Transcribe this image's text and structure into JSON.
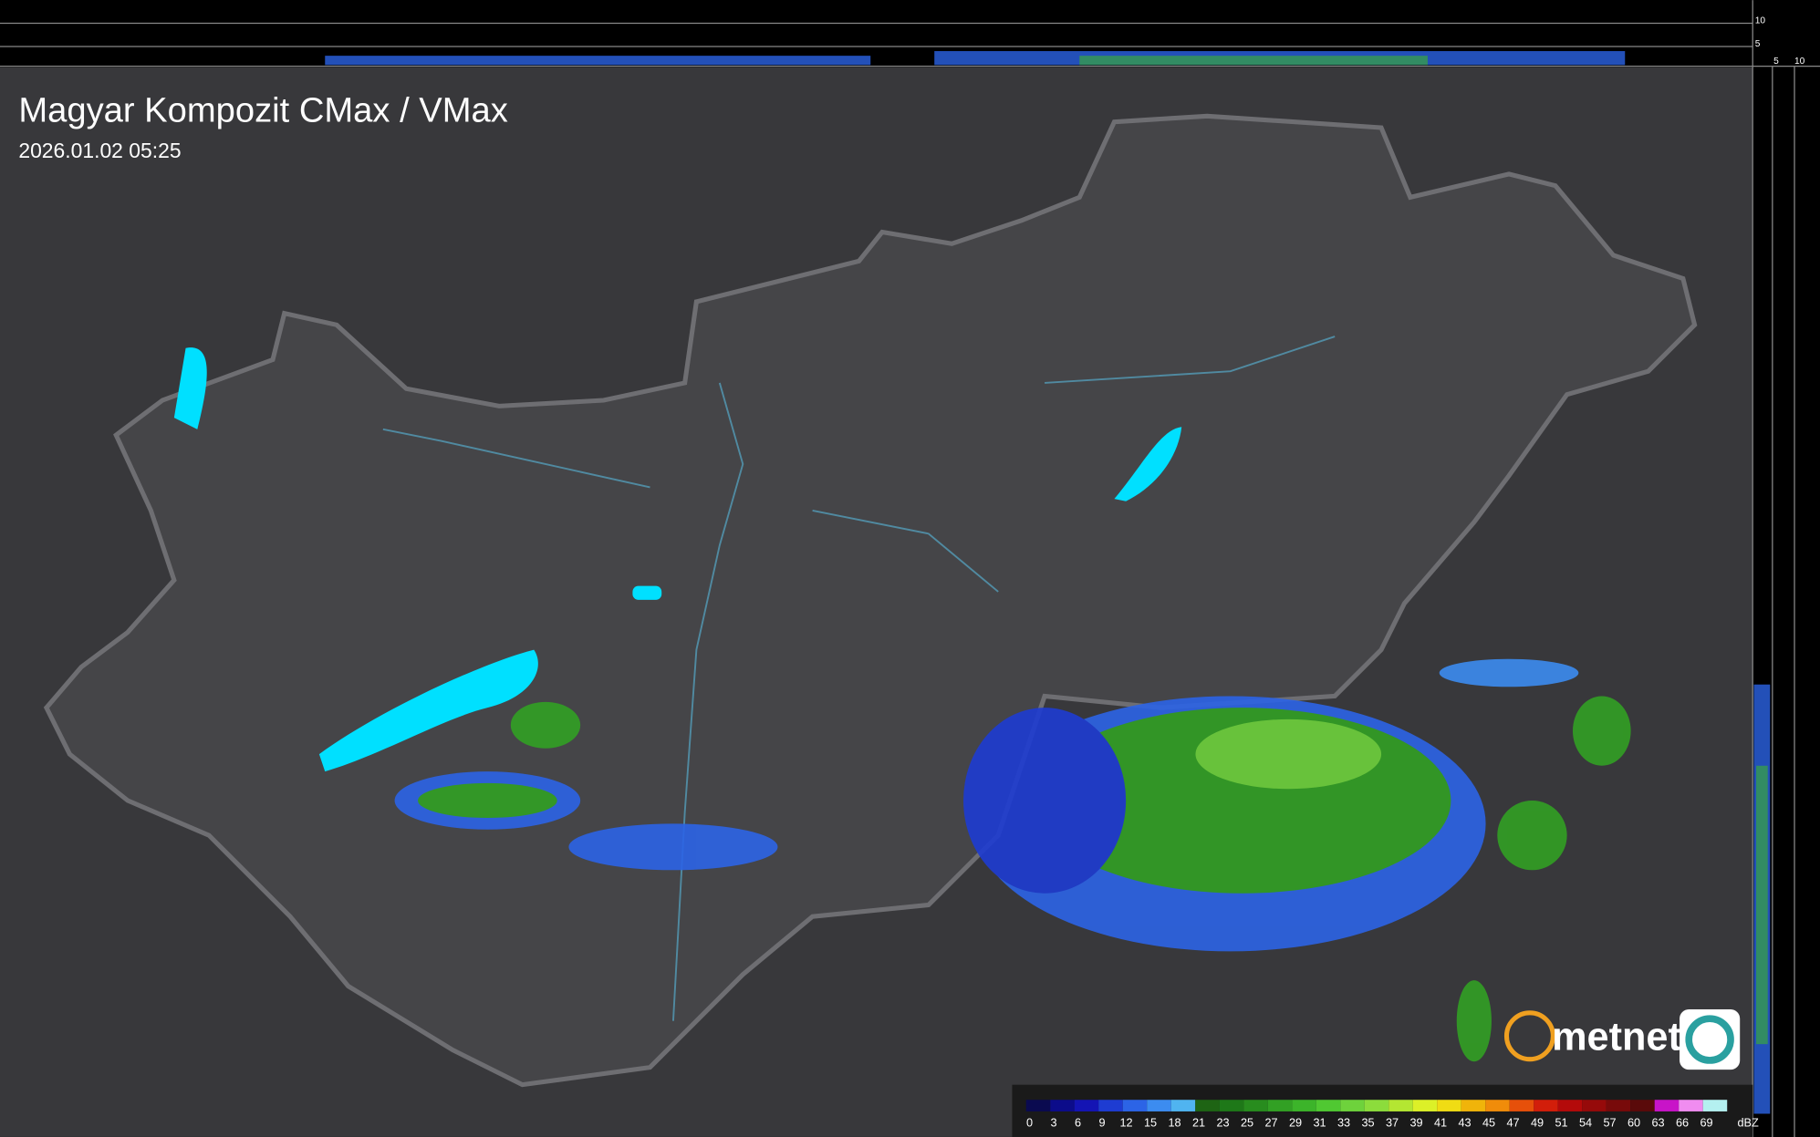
{
  "header": {
    "title": "Magyar Kompozit CMax / VMax",
    "timestamp": "2026.01.02 05:25"
  },
  "profile_ticks": {
    "top": [
      "10",
      "5"
    ],
    "right": [
      "5",
      "10"
    ]
  },
  "legend": {
    "values": [
      0,
      3,
      6,
      9,
      12,
      15,
      18,
      21,
      23,
      25,
      27,
      29,
      31,
      33,
      35,
      37,
      39,
      41,
      43,
      45,
      47,
      49,
      51,
      54,
      57,
      60,
      63,
      66,
      69
    ],
    "colors": [
      "#0a0a50",
      "#0c0c8a",
      "#1414b4",
      "#1e3cd2",
      "#2c64e6",
      "#3c8cf0",
      "#50b4f0",
      "#1e6414",
      "#1e7818",
      "#288c1e",
      "#32a024",
      "#3cb42a",
      "#50c832",
      "#6ed23c",
      "#8cdc3c",
      "#b4e632",
      "#dcf028",
      "#f0dc14",
      "#f0b40a",
      "#f08c0a",
      "#e6500a",
      "#d21e0a",
      "#b40a0a",
      "#960a0a",
      "#780a0a",
      "#5a0a0a",
      "#c814c8",
      "#f08cf0",
      "#b4f0f0"
    ],
    "unit": "dBZ"
  },
  "logo": {
    "text": "metnet"
  }
}
